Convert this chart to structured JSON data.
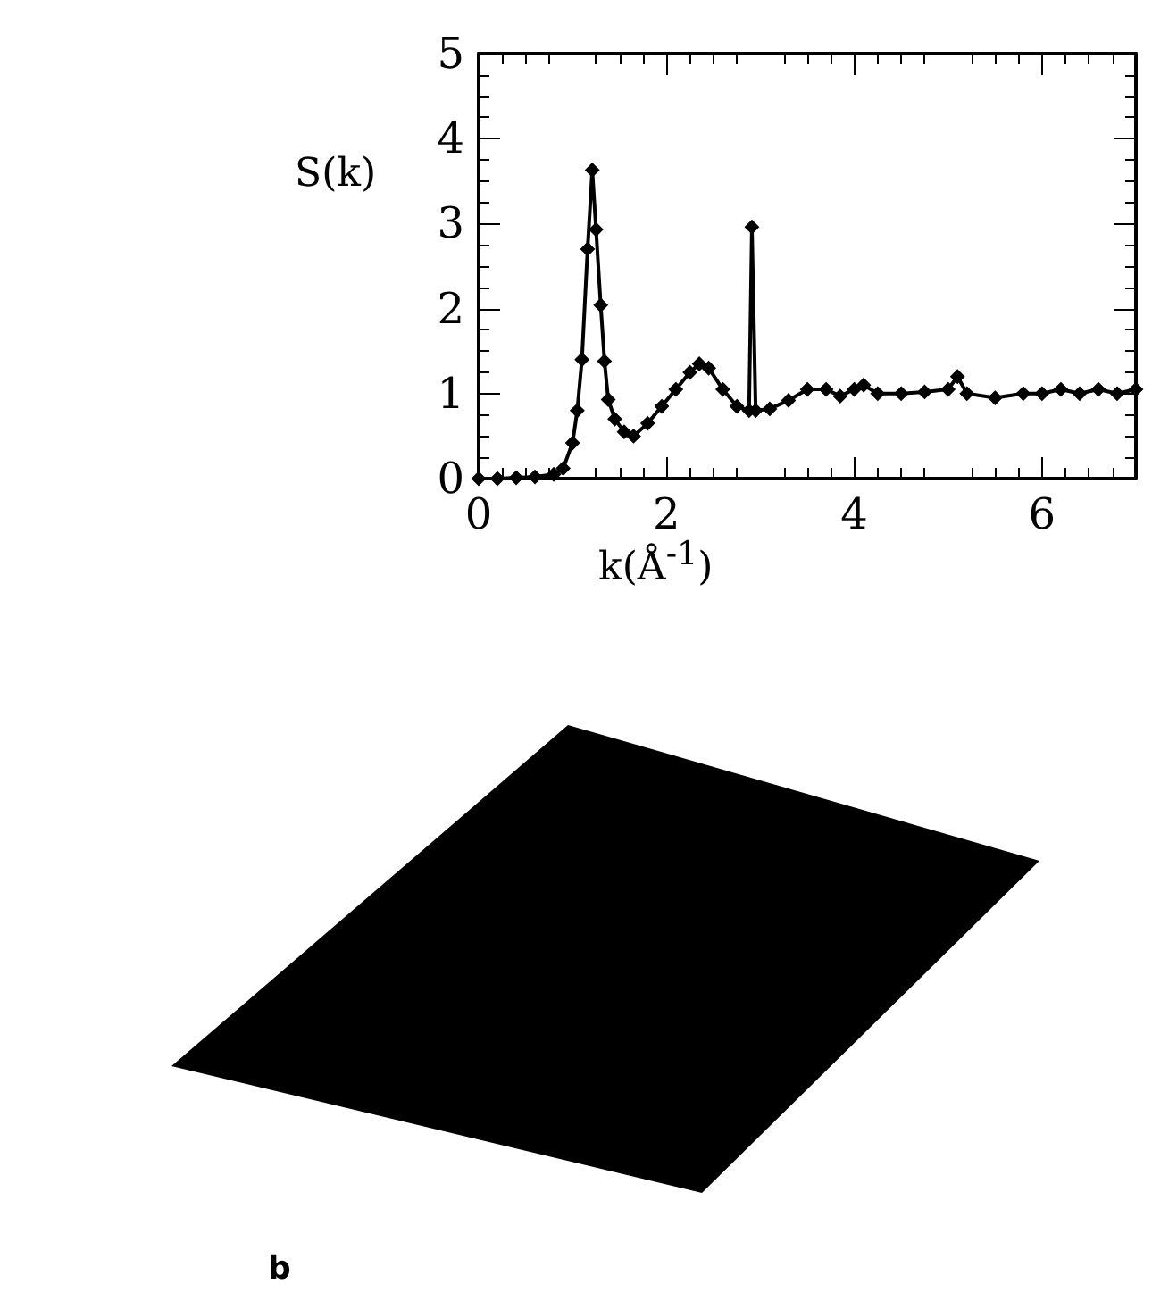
{
  "chart_data": {
    "type": "line",
    "xlabel": "k(Å$^{-1}$)",
    "ylabel": "S(k)",
    "annotations": [
      "b"
    ],
    "x": [
      0,
      0.2,
      0.4,
      0.6,
      0.8,
      0.9,
      1.0,
      1.05,
      1.1,
      1.16,
      1.21,
      1.25,
      1.3,
      1.34,
      1.38,
      1.45,
      1.55,
      1.65,
      1.8,
      1.95,
      2.1,
      2.25,
      2.35,
      2.45,
      2.6,
      2.75,
      2.88,
      2.91,
      2.95,
      3.1,
      3.3,
      3.5,
      3.7,
      3.85,
      4.0,
      4.1,
      4.25,
      4.5,
      4.75,
      5.0,
      5.1,
      5.2,
      5.5,
      5.8,
      6.0,
      6.2,
      6.4,
      6.6,
      6.8,
      7.0
    ],
    "series": [
      {
        "color": "#000000",
        "values": [
          0,
          0,
          0.01,
          0.02,
          0.05,
          0.12,
          0.42,
          0.8,
          1.4,
          2.7,
          3.63,
          2.93,
          2.04,
          1.38,
          0.93,
          0.7,
          0.55,
          0.5,
          0.65,
          0.85,
          1.05,
          1.25,
          1.35,
          1.3,
          1.05,
          0.85,
          0.8,
          2.96,
          0.8,
          0.82,
          0.92,
          1.05,
          1.05,
          0.97,
          1.05,
          1.1,
          1.0,
          1.0,
          1.02,
          1.05,
          1.2,
          1.0,
          0.95,
          1.0,
          1.0,
          1.05,
          1.0,
          1.05,
          1.0,
          1.05
        ]
      }
    ],
    "xlim": [
      0,
      7
    ],
    "xticks": [
      0,
      2,
      4,
      6
    ],
    "ylim": [
      0,
      5
    ],
    "yticks": [
      0,
      1,
      2,
      3,
      4,
      5
    ],
    "grid": false,
    "marker": "diamond",
    "line_style": "solid"
  }
}
